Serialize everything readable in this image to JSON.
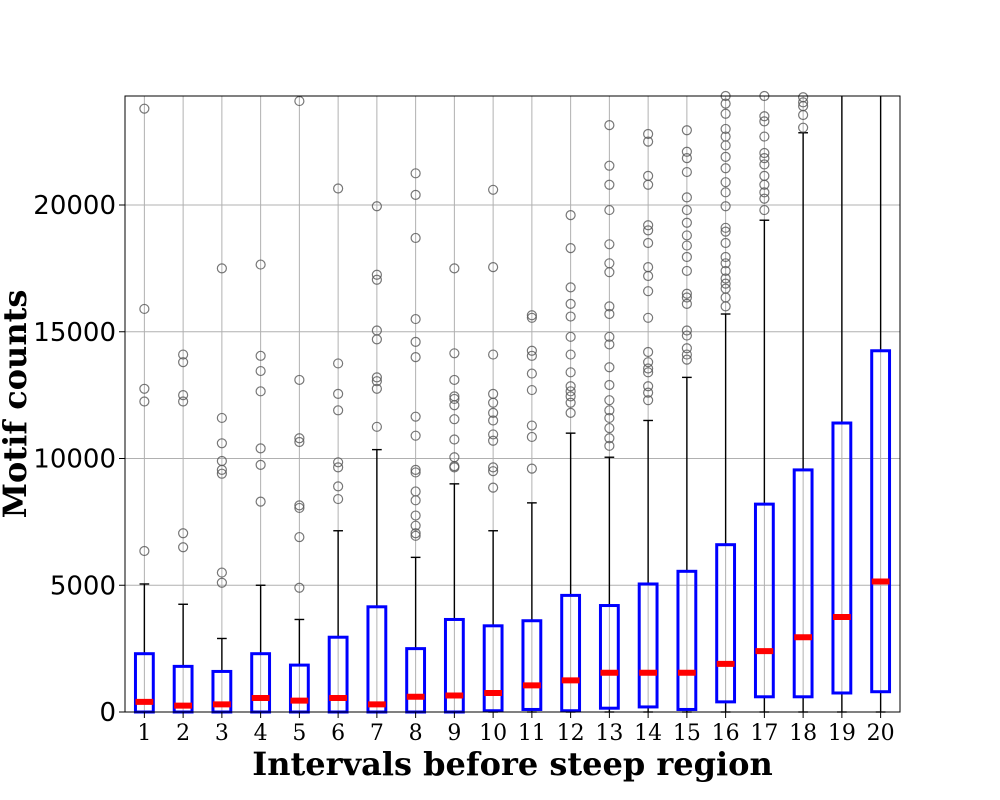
{
  "chart_data": {
    "type": "box",
    "xlabel": "Intervals before steep region",
    "ylabel": "Motif counts",
    "ylim": [
      0,
      24300
    ],
    "yticks": [
      0,
      5000,
      10000,
      15000,
      20000
    ],
    "categories": [
      "1",
      "2",
      "3",
      "4",
      "5",
      "6",
      "7",
      "8",
      "9",
      "10",
      "11",
      "12",
      "13",
      "14",
      "15",
      "16",
      "17",
      "18",
      "19",
      "20"
    ],
    "grid": true,
    "colors": {
      "box": "#0000ff",
      "median": "#ff0000",
      "whisker": "#000000",
      "flier": "#555555",
      "grid": "#b0b0b0"
    },
    "boxes": [
      {
        "category": "1",
        "q1": 0,
        "median": 400,
        "q3": 2300,
        "whisker_low": 0,
        "whisker_high": 5050,
        "outliers": [
          6350,
          12250,
          12750,
          15900,
          23800
        ]
      },
      {
        "category": "2",
        "q1": 0,
        "median": 250,
        "q3": 1800,
        "whisker_low": 0,
        "whisker_high": 4250,
        "outliers": [
          6500,
          7050,
          12250,
          12500,
          13800,
          14100
        ]
      },
      {
        "category": "3",
        "q1": 0,
        "median": 300,
        "q3": 1600,
        "whisker_low": 0,
        "whisker_high": 2900,
        "outliers": [
          5100,
          5500,
          9400,
          9550,
          9900,
          10600,
          11600,
          17500
        ]
      },
      {
        "category": "4",
        "q1": 0,
        "median": 550,
        "q3": 2300,
        "whisker_low": 0,
        "whisker_high": 5000,
        "outliers": [
          8300,
          9750,
          10400,
          12650,
          13450,
          14050,
          17650
        ]
      },
      {
        "category": "5",
        "q1": 0,
        "median": 450,
        "q3": 1850,
        "whisker_low": 0,
        "whisker_high": 3650,
        "outliers": [
          4900,
          6900,
          8050,
          8150,
          10650,
          10800,
          13100,
          24100
        ]
      },
      {
        "category": "6",
        "q1": 0,
        "median": 550,
        "q3": 2950,
        "whisker_low": 0,
        "whisker_high": 7150,
        "outliers": [
          8400,
          8900,
          9650,
          9850,
          11900,
          12550,
          13750,
          20650
        ]
      },
      {
        "category": "7",
        "q1": 0,
        "median": 300,
        "q3": 4150,
        "whisker_low": 0,
        "whisker_high": 10350,
        "outliers": [
          11250,
          12750,
          13050,
          13200,
          14700,
          15050,
          17050,
          17250,
          19950
        ]
      },
      {
        "category": "8",
        "q1": 0,
        "median": 600,
        "q3": 2500,
        "whisker_low": 0,
        "whisker_high": 6100,
        "outliers": [
          6950,
          7050,
          7350,
          7750,
          8350,
          8700,
          9450,
          9550,
          10900,
          11650,
          14000,
          14600,
          15500,
          18700,
          20400,
          21250
        ]
      },
      {
        "category": "9",
        "q1": 0,
        "median": 650,
        "q3": 3650,
        "whisker_low": 0,
        "whisker_high": 9000,
        "outliers": [
          9650,
          9700,
          10050,
          10750,
          11550,
          12100,
          12350,
          12450,
          13100,
          14150,
          17500
        ]
      },
      {
        "category": "10",
        "q1": 50,
        "median": 750,
        "q3": 3400,
        "whisker_low": 0,
        "whisker_high": 7150,
        "outliers": [
          8850,
          9500,
          9650,
          10700,
          10950,
          11500,
          11800,
          12200,
          12550,
          14100,
          17550,
          20600
        ]
      },
      {
        "category": "11",
        "q1": 100,
        "median": 1050,
        "q3": 3600,
        "whisker_low": 0,
        "whisker_high": 8250,
        "outliers": [
          9600,
          10850,
          11300,
          12700,
          13350,
          14050,
          14250,
          15550,
          15650
        ]
      },
      {
        "category": "12",
        "q1": 50,
        "median": 1250,
        "q3": 4600,
        "whisker_low": 0,
        "whisker_high": 11000,
        "outliers": [
          11800,
          12200,
          12450,
          12650,
          12850,
          13400,
          14100,
          14800,
          15600,
          16100,
          16750,
          18300,
          19600
        ]
      },
      {
        "category": "13",
        "q1": 150,
        "median": 1550,
        "q3": 4200,
        "whisker_low": 0,
        "whisker_high": 10050,
        "outliers": [
          10500,
          10800,
          11200,
          11600,
          11900,
          12300,
          12900,
          13600,
          14500,
          14800,
          15700,
          16000,
          17350,
          17700,
          18450,
          19800,
          20800,
          21550,
          23150
        ]
      },
      {
        "category": "14",
        "q1": 200,
        "median": 1550,
        "q3": 5050,
        "whisker_low": 0,
        "whisker_high": 11500,
        "outliers": [
          12300,
          12600,
          12850,
          13400,
          13550,
          13800,
          14200,
          15550,
          16600,
          17200,
          17550,
          18500,
          19000,
          19200,
          20800,
          21150,
          22500,
          22800
        ]
      },
      {
        "category": "15",
        "q1": 100,
        "median": 1550,
        "q3": 5550,
        "whisker_low": 0,
        "whisker_high": 13200,
        "outliers": [
          13900,
          14100,
          14350,
          14850,
          15050,
          16100,
          16350,
          16500,
          17400,
          17950,
          18400,
          18800,
          19300,
          19800,
          20300,
          21300,
          21850,
          22100,
          22950
        ]
      },
      {
        "category": "16",
        "q1": 400,
        "median": 1900,
        "q3": 6600,
        "whisker_low": 0,
        "whisker_high": 15700,
        "outliers": [
          16000,
          16350,
          16700,
          16900,
          17100,
          17400,
          17700,
          17950,
          18500,
          18950,
          19100,
          19950,
          20500,
          20900,
          21450,
          21900,
          22350,
          22700,
          23000,
          23600,
          24000,
          24300
        ]
      },
      {
        "category": "17",
        "q1": 600,
        "median": 2400,
        "q3": 8200,
        "whisker_low": 0,
        "whisker_high": 19400,
        "outliers": [
          19800,
          20250,
          20500,
          20800,
          21150,
          21600,
          21850,
          22050,
          22700,
          23300,
          23500,
          24300
        ]
      },
      {
        "category": "18",
        "q1": 600,
        "median": 2950,
        "q3": 9550,
        "whisker_low": 0,
        "whisker_high": 22850,
        "outliers": [
          23050,
          23550,
          23900,
          24050,
          24250
        ]
      },
      {
        "category": "19",
        "q1": 750,
        "median": 3750,
        "q3": 11400,
        "whisker_low": 0,
        "whisker_high": 24300,
        "outliers": []
      },
      {
        "category": "20",
        "q1": 800,
        "median": 5150,
        "q3": 14250,
        "whisker_low": 0,
        "whisker_high": 24300,
        "outliers": []
      }
    ]
  }
}
